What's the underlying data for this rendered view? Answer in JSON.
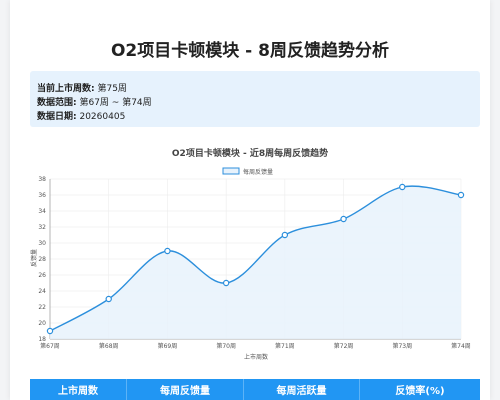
{
  "page": {
    "title": "O2项目卡顿模块 - 8周反馈趋势分析"
  },
  "info": [
    {
      "label": "当前上市周数:",
      "value": "第75周"
    },
    {
      "label": "数据范围:",
      "value": "第67周 ~ 第74周"
    },
    {
      "label": "数据日期:",
      "value": "20260405"
    }
  ],
  "table": {
    "headers": [
      "上市周数",
      "每周反馈量",
      "每周活跃量",
      "反馈率(%)"
    ]
  },
  "colors": {
    "line": "#2c8fdc",
    "fill": "#e7f2fc",
    "header": "#2196f3"
  },
  "chart_data": {
    "type": "line",
    "title": "O2项目卡顿模块 - 近8周每周反馈趋势",
    "xlabel": "上市周数",
    "ylabel": "反馈量",
    "categories": [
      "第67周",
      "第68周",
      "第69周",
      "第70周",
      "第71周",
      "第72周",
      "第73周",
      "第74周"
    ],
    "series": [
      {
        "name": "每周反馈量",
        "values": [
          19,
          23,
          29,
          25,
          31,
          33,
          37,
          36
        ]
      }
    ],
    "ylim": [
      18,
      38
    ],
    "yticks": [
      18,
      20,
      22,
      24,
      26,
      28,
      30,
      32,
      34,
      36,
      38
    ],
    "grid": true,
    "smooth": true,
    "area_fill": true,
    "legend": "top-center"
  }
}
